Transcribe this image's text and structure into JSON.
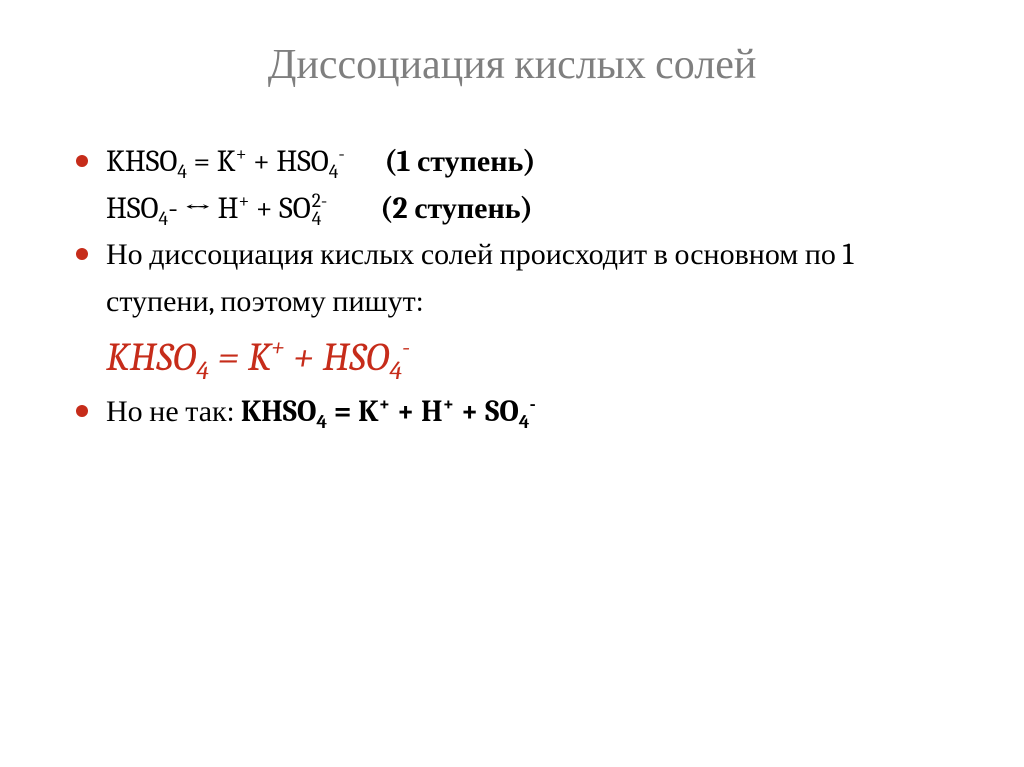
{
  "title": "Диссоциация кислых солей",
  "colors": {
    "title_gray": "#7f7f7f",
    "accent_red": "#c62c1a",
    "text_black": "#000000",
    "background": "#ffffff"
  },
  "typography": {
    "title_fontsize": 42,
    "body_fontsize": 30,
    "big_equation_fontsize": 40,
    "font_family": "Cambria / serif"
  },
  "lines": [
    {
      "bulleted": true,
      "html": "KHSO<sub>4</sub> = K<sup>+</sup> + HSO<sub>4</sub><sup>-</sup>&nbsp;&nbsp;&nbsp;&nbsp;&nbsp;&nbsp;<b>(1 ступень)</b>",
      "plain": "KHSO4 = K+ + HSO4-      (1 ступень)"
    },
    {
      "bulleted": false,
      "indent": true,
      "html": "HSO<sub>4</sub>- ↔ H<sup>+</sup> + SO<span class=\"supersub\"><span class=\"top\">2-</span><span class=\"bot\">4</span></span>&nbsp;&nbsp;&nbsp;&nbsp;&nbsp;&nbsp;&nbsp;&nbsp;<b>(2 ступень)</b>",
      "plain": "HSO4- ↔ H+ + SO4^2-        (2 ступень)"
    },
    {
      "bulleted": true,
      "html": "Но диссоциация кислых солей происходит в основном по 1 ступени, поэтому пишут:",
      "plain": "Но диссоциация кислых солей происходит в основном по 1 ступени, поэтому пишут:"
    },
    {
      "bulleted": false,
      "indent": true,
      "big": true,
      "red": true,
      "italic": true,
      "html": "KHSO<sub>4</sub> = K<sup>+</sup> + HSO<sub>4</sub><sup>-</sup>",
      "plain": "KHSO4 = K+ + HSO4-"
    },
    {
      "bulleted": true,
      "html": "Но не так: <b>KHSO<sub>4</sub> = K<sup>+</sup> + H<sup>+</sup> + SO<sub>4</sub><sup>-</sup></b>",
      "plain": "Но не так: KHSO4 = K+ + H+ + SO4-"
    }
  ]
}
